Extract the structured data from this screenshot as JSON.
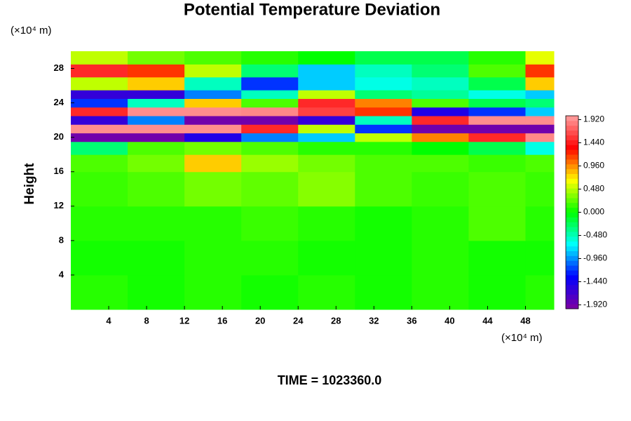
{
  "chart_data": {
    "type": "heatmap",
    "title": "Potential Temperature Deviation",
    "x_unit": "(×10⁴ m)",
    "y_unit": "(×10⁴ m)",
    "y_label": "Height",
    "annotation": "TIME = 1023360.0",
    "xlim": [
      0,
      51
    ],
    "ylim": [
      0,
      30
    ],
    "xticks": [
      4,
      8,
      12,
      16,
      20,
      24,
      28,
      32,
      36,
      40,
      44,
      48
    ],
    "yticks": [
      4,
      8,
      12,
      16,
      20,
      24,
      28
    ],
    "x_edges": [
      0,
      6,
      12,
      18,
      24,
      30,
      36,
      42,
      48,
      51
    ],
    "y_edges": [
      0,
      4,
      8,
      12,
      16,
      18,
      19.5,
      20.5,
      21.5,
      22.5,
      23.5,
      24.5,
      25.5,
      27,
      28.5,
      30
    ],
    "z": [
      [
        0.1,
        0.05,
        0.1,
        0.05,
        0.1,
        0.05,
        0.1,
        0.05,
        0.1
      ],
      [
        0.05,
        0.05,
        0.1,
        0.1,
        0.05,
        0.05,
        0.1,
        0.05,
        0.05
      ],
      [
        0.1,
        0.1,
        0.1,
        0.15,
        0.1,
        0.05,
        0.1,
        0.2,
        0.1
      ],
      [
        0.15,
        0.2,
        0.3,
        0.25,
        0.35,
        0.2,
        0.15,
        0.2,
        0.15
      ],
      [
        0.2,
        0.3,
        0.8,
        0.4,
        0.3,
        0.2,
        0.2,
        0.15,
        0.2
      ],
      [
        -0.3,
        0.2,
        0.3,
        0.2,
        0.1,
        0.1,
        0.0,
        -0.2,
        -0.6
      ],
      [
        -1.92,
        -1.92,
        -1.5,
        -1.0,
        -0.8,
        0.5,
        1.0,
        1.5,
        1.9
      ],
      [
        1.92,
        1.92,
        1.92,
        1.5,
        0.5,
        -1.2,
        -1.92,
        -1.92,
        -1.92
      ],
      [
        -1.6,
        -1.0,
        -1.92,
        -1.92,
        -1.6,
        -0.5,
        1.5,
        1.92,
        1.92
      ],
      [
        1.5,
        1.92,
        1.92,
        1.9,
        1.6,
        1.2,
        -1.5,
        -1.2,
        -0.8
      ],
      [
        -1.2,
        -0.5,
        0.8,
        0.2,
        1.5,
        1.0,
        0.2,
        -0.2,
        -0.3
      ],
      [
        -1.6,
        -1.6,
        -1.0,
        -0.5,
        0.5,
        -0.3,
        -0.4,
        -0.6,
        -0.8
      ],
      [
        0.5,
        0.8,
        -0.5,
        -1.2,
        -0.8,
        -0.6,
        -0.5,
        -0.2,
        0.8
      ],
      [
        1.5,
        1.2,
        0.5,
        -0.3,
        -0.8,
        -0.5,
        -0.3,
        0.2,
        1.2
      ],
      [
        0.5,
        0.3,
        0.2,
        0.1,
        0.0,
        -0.2,
        -0.2,
        0.1,
        0.6
      ]
    ],
    "zlim": [
      -2,
      2
    ],
    "colorscale": [
      "#8000a0",
      "#0000ff",
      "#00ffff",
      "#00ff00",
      "#ffff00",
      "#ff0000",
      "#ffa0a0"
    ],
    "colorbar_ticks": [
      {
        "value": 1.92,
        "label": "1.920"
      },
      {
        "value": 1.44,
        "label": "1.440"
      },
      {
        "value": 0.96,
        "label": "0.960"
      },
      {
        "value": 0.48,
        "label": "0.480"
      },
      {
        "value": 0,
        "label": "0.000"
      },
      {
        "value": -0.48,
        "label": "-0.480"
      },
      {
        "value": -0.96,
        "label": "-0.960"
      },
      {
        "value": -1.44,
        "label": "-1.440"
      },
      {
        "value": -1.92,
        "label": "-1.920"
      }
    ]
  }
}
